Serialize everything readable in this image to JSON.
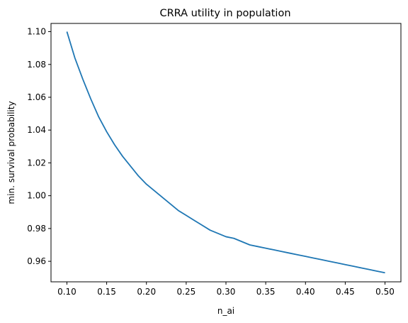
{
  "chart_data": {
    "type": "line",
    "title": "CRRA utility in population",
    "xlabel": "n_ai",
    "ylabel": "min. survival probability",
    "xlim": [
      0.08,
      0.52
    ],
    "ylim": [
      0.9475,
      1.105
    ],
    "grid": false,
    "x_ticks": [
      0.1,
      0.15,
      0.2,
      0.25,
      0.3,
      0.35,
      0.4,
      0.45,
      0.5
    ],
    "x_tick_labels": [
      "0.10",
      "0.15",
      "0.20",
      "0.25",
      "0.30",
      "0.35",
      "0.40",
      "0.45",
      "0.50"
    ],
    "y_ticks": [
      0.96,
      0.98,
      1.0,
      1.02,
      1.04,
      1.06,
      1.08,
      1.1
    ],
    "y_tick_labels": [
      "0.96",
      "0.98",
      "1.00",
      "1.02",
      "1.04",
      "1.06",
      "1.08",
      "1.10"
    ],
    "series": [
      {
        "color": "#1f77b4",
        "x": [
          0.1,
          0.11,
          0.12,
          0.13,
          0.14,
          0.15,
          0.16,
          0.17,
          0.18,
          0.19,
          0.2,
          0.21,
          0.22,
          0.23,
          0.24,
          0.25,
          0.26,
          0.27,
          0.28,
          0.29,
          0.3,
          0.31,
          0.32,
          0.33,
          0.34,
          0.35,
          0.36,
          0.37,
          0.38,
          0.39,
          0.4,
          0.41,
          0.42,
          0.43,
          0.44,
          0.45,
          0.46,
          0.47,
          0.48,
          0.49,
          0.5
        ],
        "y": [
          1.1,
          1.084,
          1.071,
          1.059,
          1.048,
          1.039,
          1.031,
          1.024,
          1.018,
          1.012,
          1.007,
          1.003,
          0.999,
          0.995,
          0.991,
          0.988,
          0.985,
          0.982,
          0.979,
          0.977,
          0.975,
          0.974,
          0.972,
          0.97,
          0.969,
          0.968,
          0.967,
          0.966,
          0.965,
          0.964,
          0.963,
          0.962,
          0.961,
          0.96,
          0.959,
          0.958,
          0.957,
          0.956,
          0.955,
          0.954,
          0.953
        ]
      }
    ]
  }
}
